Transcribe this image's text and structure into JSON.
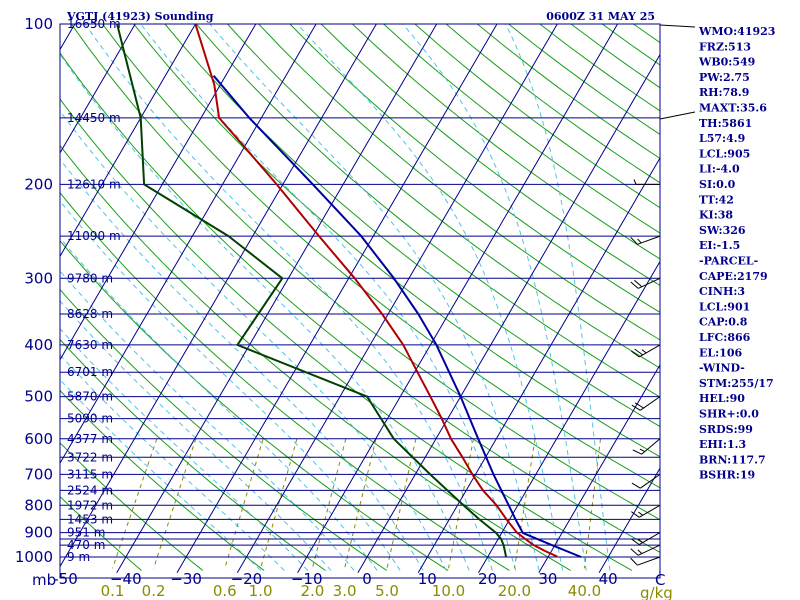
{
  "chart_data": {
    "type": "line",
    "title_left": "VGTJ (41923) Sounding",
    "title_right": "0600Z 31 MAY 25",
    "xlabel_unit": "C",
    "ylabel_unit": "mb",
    "mixing_ratio_unit": "g/kg",
    "xlim": [
      -50,
      50
    ],
    "ylim": [
      1050,
      100
    ],
    "pressure_ticks": [
      100,
      200,
      300,
      400,
      500,
      600,
      700,
      800,
      900,
      1000
    ],
    "isobars": [
      100,
      150,
      200,
      250,
      300,
      350,
      400,
      450,
      500,
      550,
      600,
      650,
      700,
      750,
      800,
      850,
      900,
      925,
      950,
      1000
    ],
    "temperature_ticks": [
      -50,
      -40,
      -30,
      -20,
      -10,
      0,
      10,
      20,
      30,
      40
    ],
    "temperature_tick_labels": [
      "-50",
      "−40",
      "−30",
      "−20",
      "−10",
      "0",
      "10",
      "20",
      "30",
      "40"
    ],
    "mixing_ratio_ticks": [
      {
        "value": 0.1,
        "label": "0.1"
      },
      {
        "value": 0.2,
        "label": "0.2"
      },
      {
        "value": 0.6,
        "label": "0.6"
      },
      {
        "value": 1.0,
        "label": "1.0"
      },
      {
        "value": 2.0,
        "label": "2.0"
      },
      {
        "value": 3.0,
        "label": "3.0"
      },
      {
        "value": 5.0,
        "label": "5.0"
      },
      {
        "value": 10.0,
        "label": "10.0"
      },
      {
        "value": 20.0,
        "label": "20.0"
      },
      {
        "value": 40.0,
        "label": "40.0"
      }
    ],
    "heights": [
      {
        "p": 100,
        "label": "16650 m"
      },
      {
        "p": 150,
        "label": "14450 m"
      },
      {
        "p": 200,
        "label": "12610 m"
      },
      {
        "p": 250,
        "label": "11090 m"
      },
      {
        "p": 300,
        "label": "9780 m"
      },
      {
        "p": 350,
        "label": "8628 m"
      },
      {
        "p": 400,
        "label": "7630 m"
      },
      {
        "p": 450,
        "label": "6701 m"
      },
      {
        "p": 500,
        "label": "5870 m"
      },
      {
        "p": 550,
        "label": "5090 m"
      },
      {
        "p": 600,
        "label": "4377 m"
      },
      {
        "p": 650,
        "label": "3722 m"
      },
      {
        "p": 700,
        "label": "3115 m"
      },
      {
        "p": 750,
        "label": "2524 m"
      },
      {
        "p": 800,
        "label": "1972 m"
      },
      {
        "p": 850,
        "label": "1453 m"
      },
      {
        "p": 900,
        "label": "951 m"
      },
      {
        "p": 950,
        "label": "470 m"
      },
      {
        "p": 1000,
        "label": "9 m"
      }
    ],
    "series": [
      {
        "name": "temperature",
        "color": "#b00000",
        "points": [
          {
            "p": 998,
            "t": 31.5
          },
          {
            "p": 975,
            "t": 29.0
          },
          {
            "p": 950,
            "t": 26.5
          },
          {
            "p": 925,
            "t": 24.5
          },
          {
            "p": 900,
            "t": 22.5
          },
          {
            "p": 850,
            "t": 19.5
          },
          {
            "p": 800,
            "t": 16.5
          },
          {
            "p": 750,
            "t": 12.8
          },
          {
            "p": 700,
            "t": 9.5
          },
          {
            "p": 650,
            "t": 6.2
          },
          {
            "p": 600,
            "t": 2.5
          },
          {
            "p": 550,
            "t": -1.0
          },
          {
            "p": 500,
            "t": -5.0
          },
          {
            "p": 450,
            "t": -9.5
          },
          {
            "p": 400,
            "t": -14.5
          },
          {
            "p": 350,
            "t": -21.0
          },
          {
            "p": 300,
            "t": -29.0
          },
          {
            "p": 250,
            "t": -39.0
          },
          {
            "p": 200,
            "t": -51.0
          },
          {
            "p": 170,
            "t": -60.0
          },
          {
            "p": 150,
            "t": -67.0
          },
          {
            "p": 130,
            "t": -71.0
          },
          {
            "p": 100,
            "t": -80.0
          }
        ]
      },
      {
        "name": "dewpoint",
        "color": "#004000",
        "points": [
          {
            "p": 998,
            "t": 23.0
          },
          {
            "p": 950,
            "t": 21.5
          },
          {
            "p": 925,
            "t": 20.5
          },
          {
            "p": 900,
            "t": 19.0
          },
          {
            "p": 850,
            "t": 15.0
          },
          {
            "p": 800,
            "t": 11.0
          },
          {
            "p": 700,
            "t": 2.5
          },
          {
            "p": 600,
            "t": -7.0
          },
          {
            "p": 500,
            "t": -15.5
          },
          {
            "p": 400,
            "t": -42.0
          },
          {
            "p": 300,
            "t": -41.0
          },
          {
            "p": 250,
            "t": -54.0
          },
          {
            "p": 200,
            "t": -73.0
          },
          {
            "p": 150,
            "t": -80.0
          },
          {
            "p": 100,
            "t": -93.0
          }
        ]
      },
      {
        "name": "parcel",
        "color": "#0000a0",
        "points": [
          {
            "p": 1000,
            "t": 35.5
          },
          {
            "p": 950,
            "t": 29.5
          },
          {
            "p": 901,
            "t": 23.5
          },
          {
            "p": 850,
            "t": 21.0
          },
          {
            "p": 800,
            "t": 18.5
          },
          {
            "p": 700,
            "t": 13.0
          },
          {
            "p": 600,
            "t": 7.0
          },
          {
            "p": 500,
            "t": 0.0
          },
          {
            "p": 400,
            "t": -9.0
          },
          {
            "p": 350,
            "t": -15.0
          },
          {
            "p": 300,
            "t": -22.5
          },
          {
            "p": 250,
            "t": -32.0
          },
          {
            "p": 200,
            "t": -45.0
          },
          {
            "p": 150,
            "t": -62.0
          },
          {
            "p": 125,
            "t": -72.0
          }
        ]
      }
    ],
    "wind_barbs": [
      {
        "p": 1000,
        "dir": 250,
        "spd": 10
      },
      {
        "p": 950,
        "dir": 245,
        "spd": 15
      },
      {
        "p": 900,
        "dir": 240,
        "spd": 15
      },
      {
        "p": 800,
        "dir": 240,
        "spd": 15
      },
      {
        "p": 700,
        "dir": 235,
        "spd": 10
      },
      {
        "p": 600,
        "dir": 230,
        "spd": 15
      },
      {
        "p": 500,
        "dir": 235,
        "spd": 20
      },
      {
        "p": 400,
        "dir": 240,
        "spd": 25
      },
      {
        "p": 300,
        "dir": 245,
        "spd": 20
      },
      {
        "p": 250,
        "dir": 250,
        "spd": 15
      },
      {
        "p": 200,
        "dir": 270,
        "spd": 5
      }
    ],
    "indices": [
      "WMO:41923",
      "FRZ:513",
      "WB0:549",
      "PW:2.75",
      "RH:78.9",
      "MAXT:35.6",
      "TH:5861",
      "L57:4.9",
      "LCL:905",
      "LI:-4.0",
      "SI:0.0",
      "TT:42",
      "KI:38",
      "SW:326",
      "EI:-1.5",
      "-PARCEL-",
      "CAPE:2179",
      "CINH:3",
      "LCL:901",
      "CAP:0.8",
      "LFC:866",
      "EL:106",
      "-WIND-",
      "STM:255/17",
      "HEL:90",
      "SHR+:0.0",
      "SRDS:99",
      "EHI:1.3",
      "BRN:117.7",
      "BSHR:19"
    ]
  },
  "colors": {
    "frame": "#00008b",
    "isobar": "#00008b",
    "isotherm": "#00008b",
    "dry_adiabat": "#1a9e1a",
    "moist_adiabat": "#4fc4e6",
    "mixing_ratio": "#8b8b00",
    "wind": "#000000"
  }
}
